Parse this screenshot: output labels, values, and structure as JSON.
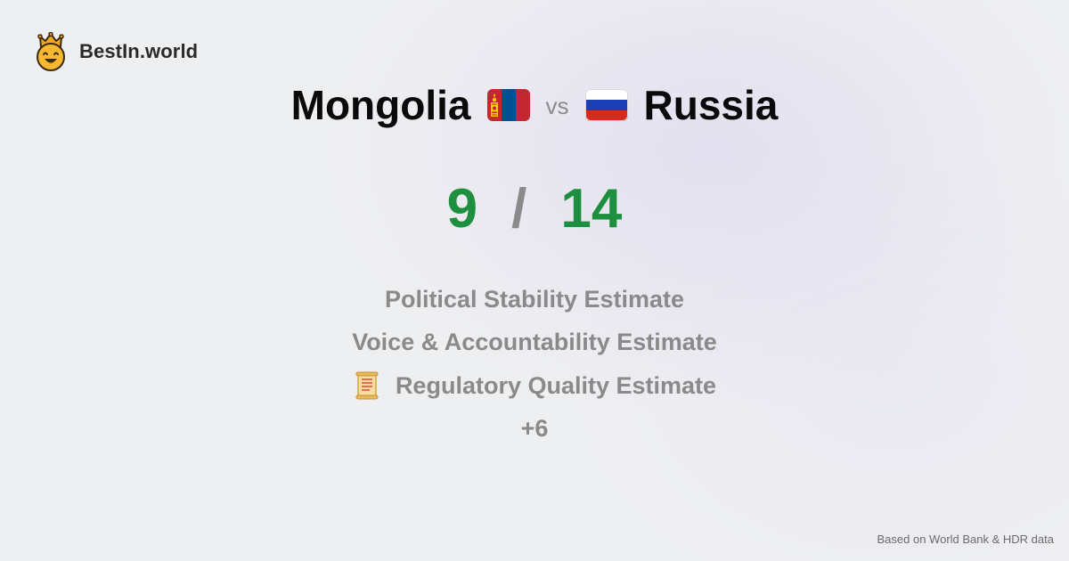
{
  "brand": {
    "name": "BestIn.world",
    "icon": "crown-smiley-icon"
  },
  "comparison": {
    "left_country": "Mongolia",
    "left_flag": "mongolia-flag-icon",
    "vs_label": "vs",
    "right_country": "Russia",
    "right_flag": "russia-flag-icon"
  },
  "score": {
    "left": "9",
    "separator": "/",
    "right": "14",
    "color": "#1d8f3f"
  },
  "metrics": {
    "items": [
      {
        "label": "Political Stability Estimate"
      },
      {
        "label": "Voice & Accountability Estimate"
      },
      {
        "label": "Regulatory Quality Estimate",
        "icon": "scroll-icon"
      }
    ],
    "more_label": "+6"
  },
  "footer": {
    "source_note": "Based on World Bank & HDR data"
  }
}
